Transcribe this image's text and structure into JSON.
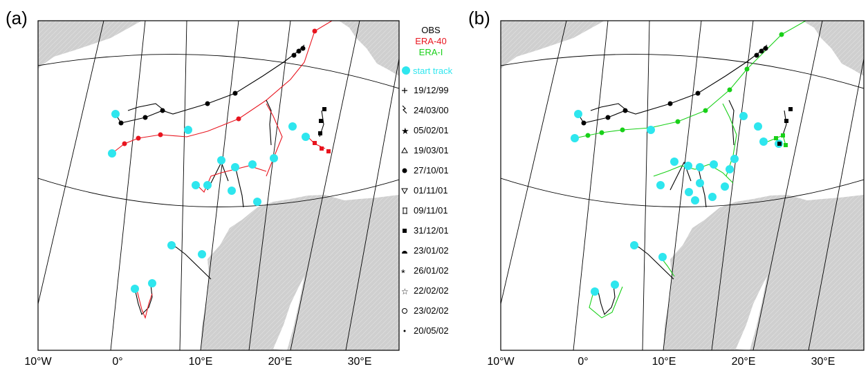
{
  "panels": [
    {
      "label": "(a)"
    },
    {
      "label": "(b)"
    }
  ],
  "legend": {
    "sources": [
      {
        "name": "OBS",
        "color": "#000000"
      },
      {
        "name": "ERA-40",
        "color": "#e8141e"
      },
      {
        "name": "ERA-I",
        "color": "#18d018"
      }
    ],
    "start_track": {
      "label": "start track",
      "color": "#2ee6ee"
    },
    "dates": [
      {
        "date": "19/12/99",
        "symbol": "plus"
      },
      {
        "date": "24/03/00",
        "symbol": "zigzag"
      },
      {
        "date": "05/02/01",
        "symbol": "star"
      },
      {
        "date": "19/03/01",
        "symbol": "triangle"
      },
      {
        "date": "27/10/01",
        "symbol": "dot"
      },
      {
        "date": "01/11/01",
        "symbol": "triangle-down"
      },
      {
        "date": "09/11/01",
        "symbol": "bracket"
      },
      {
        "date": "31/12/01",
        "symbol": "square"
      },
      {
        "date": "23/01/02",
        "symbol": "half-disc"
      },
      {
        "date": "26/01/02",
        "symbol": "asterisk"
      },
      {
        "date": "22/02/02",
        "symbol": "pentagram"
      },
      {
        "date": "23/02/02",
        "symbol": "circle"
      },
      {
        "date": "20/05/02",
        "symbol": "small-dot"
      }
    ]
  },
  "lon_ticks": [
    "10°W",
    "0°",
    "10°E",
    "20°E",
    "30°E"
  ],
  "colors": {
    "land": "#d0d0d0",
    "grid": "#000000",
    "frame": "#000000"
  }
}
